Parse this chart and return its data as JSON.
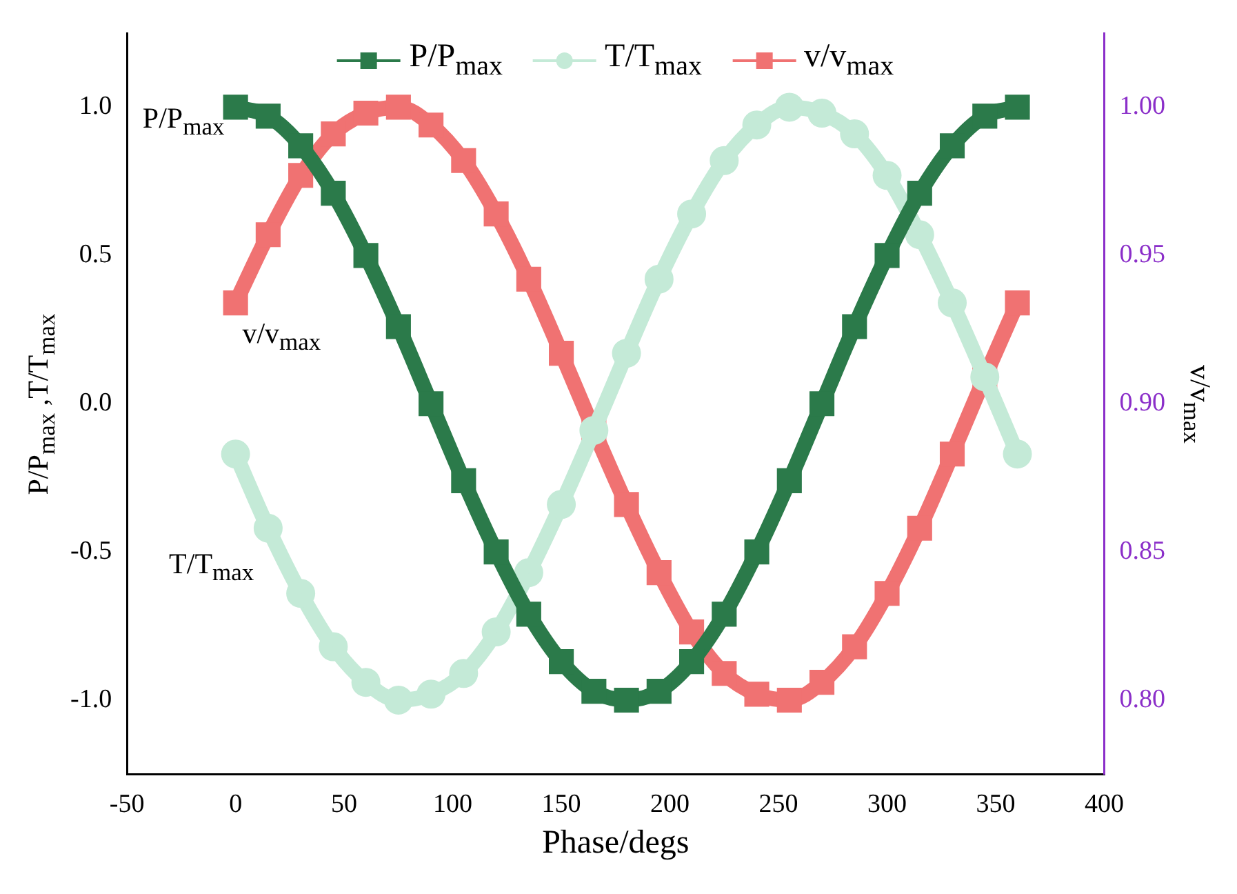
{
  "chart_data": {
    "type": "line",
    "xlabel": "Phase/degs",
    "ylabel": "P/P$_{max}$ ,T/T$_{max}$",
    "y2label": "v/v$_{max}$",
    "x": [
      0,
      15,
      30,
      45,
      60,
      75,
      90,
      105,
      120,
      135,
      150,
      165,
      180,
      195,
      210,
      225,
      240,
      255,
      270,
      285,
      300,
      315,
      330,
      345,
      360
    ],
    "series": [
      {
        "name": "P/P$_{max}$",
        "color": "#2b7a4a",
        "marker": "square",
        "values": [
          1,
          0.97,
          0.87,
          0.71,
          0.5,
          0.26,
          0,
          -0.26,
          -0.5,
          -0.71,
          -0.87,
          -0.97,
          -1,
          -0.97,
          -0.87,
          -0.71,
          -0.5,
          -0.26,
          0,
          0.26,
          0.5,
          0.71,
          0.87,
          0.97,
          1
        ]
      },
      {
        "name": "T/T$_{max}$",
        "color": "#c4ead7",
        "marker": "circle",
        "values": [
          -0.17,
          -0.42,
          -0.64,
          -0.82,
          -0.94,
          -1,
          -0.98,
          -0.91,
          -0.77,
          -0.57,
          -0.34,
          -0.09,
          0.17,
          0.42,
          0.64,
          0.82,
          0.94,
          1,
          0.98,
          0.91,
          0.77,
          0.57,
          0.34,
          0.09,
          -0.17
        ]
      },
      {
        "name": "v/v$_{max}$",
        "color": "#f07272",
        "marker": "square",
        "axis": "y2",
        "values": [
          0.934,
          0.957,
          0.977,
          0.991,
          0.998,
          1,
          0.994,
          0.982,
          0.964,
          0.942,
          0.917,
          0.891,
          0.866,
          0.843,
          0.823,
          0.809,
          0.802,
          0.8,
          0.806,
          0.818,
          0.836,
          0.858,
          0.883,
          0.909,
          0.934
        ]
      }
    ],
    "xlim": [
      -50,
      400
    ],
    "xticks": [
      -50,
      0,
      50,
      100,
      150,
      200,
      250,
      300,
      350,
      400
    ],
    "ylim": [
      -1.25,
      1.25
    ],
    "yticks": [
      {
        "value": -1,
        "label": "-1.0"
      },
      {
        "value": -0.5,
        "label": "-0.5"
      },
      {
        "value": 0,
        "label": "0.0"
      },
      {
        "value": 0.5,
        "label": "0.5"
      },
      {
        "value": 1,
        "label": "1.0"
      }
    ],
    "y2lim": [
      0.775,
      1.025
    ],
    "y2ticks": [
      {
        "value": 0.8,
        "label": "0.80"
      },
      {
        "value": 0.85,
        "label": "0.85"
      },
      {
        "value": 0.9,
        "label": "0.90"
      },
      {
        "value": 0.95,
        "label": "0.95"
      },
      {
        "value": 1,
        "label": "1.00"
      }
    ],
    "annotations": [
      "P/P$_{max}$",
      "v/v$_{max}$",
      "T/T$_{max}$"
    ],
    "legend": "top"
  }
}
